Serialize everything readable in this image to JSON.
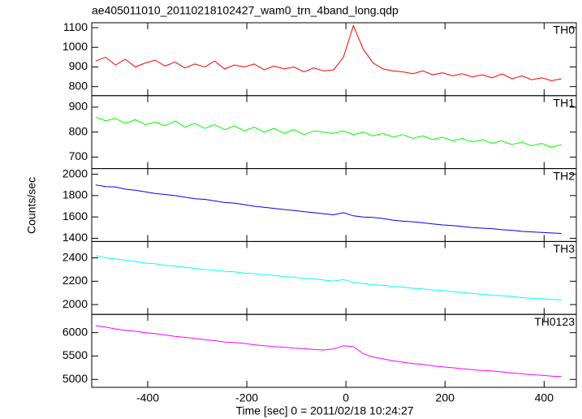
{
  "chart_data": {
    "type": "line",
    "title": "ae405011010_20110218102427_wam0_trn_4band_long.qdp",
    "xlabel": "Time [sec] 0 = 2011/02/18 10:24:27",
    "ylabel": "Counts/sec",
    "xlim": [
      -513,
      465
    ],
    "xticks": [
      -400,
      -200,
      0,
      200,
      400
    ],
    "x": [
      -505,
      -485,
      -465,
      -445,
      -425,
      -405,
      -385,
      -365,
      -345,
      -325,
      -305,
      -285,
      -265,
      -245,
      -225,
      -205,
      -185,
      -165,
      -145,
      -125,
      -105,
      -85,
      -65,
      -45,
      -25,
      -5,
      15,
      35,
      55,
      75,
      95,
      115,
      135,
      155,
      175,
      195,
      215,
      235,
      255,
      275,
      295,
      315,
      335,
      355,
      375,
      395,
      415,
      435
    ],
    "panels": [
      {
        "name": "TH0",
        "color": "#ff0000",
        "ylim": [
          754,
          1125
        ],
        "yticks": [
          800,
          900,
          1000,
          1100
        ],
        "values": [
          930,
          950,
          910,
          940,
          900,
          920,
          935,
          905,
          925,
          895,
          915,
          900,
          930,
          890,
          910,
          900,
          915,
          885,
          905,
          890,
          900,
          875,
          895,
          880,
          885,
          950,
          1110,
          990,
          920,
          890,
          880,
          875,
          865,
          880,
          860,
          870,
          855,
          865,
          850,
          860,
          845,
          865,
          840,
          855,
          835,
          845,
          830,
          840
        ]
      },
      {
        "name": "TH1",
        "color": "#00ff00",
        "ylim": [
          654,
          946
        ],
        "yticks": [
          700,
          800,
          900
        ],
        "values": [
          860,
          845,
          855,
          835,
          850,
          830,
          840,
          825,
          845,
          820,
          835,
          815,
          830,
          810,
          825,
          805,
          820,
          800,
          815,
          795,
          810,
          790,
          805,
          800,
          795,
          805,
          790,
          800,
          785,
          795,
          780,
          790,
          775,
          785,
          770,
          780,
          765,
          775,
          760,
          770,
          755,
          765,
          750,
          760,
          745,
          755,
          740,
          750
        ]
      },
      {
        "name": "TH2",
        "color": "#0000ff",
        "ylim": [
          1370,
          2053
        ],
        "yticks": [
          1400,
          1600,
          1800,
          2000
        ],
        "values": [
          1900,
          1885,
          1880,
          1860,
          1850,
          1835,
          1820,
          1810,
          1800,
          1785,
          1770,
          1765,
          1750,
          1735,
          1730,
          1715,
          1700,
          1690,
          1680,
          1670,
          1660,
          1650,
          1640,
          1630,
          1620,
          1640,
          1610,
          1600,
          1595,
          1585,
          1570,
          1560,
          1555,
          1545,
          1535,
          1525,
          1520,
          1510,
          1500,
          1495,
          1490,
          1480,
          1475,
          1465,
          1460,
          1455,
          1450,
          1445
        ]
      },
      {
        "name": "TH3",
        "color": "#00ffff",
        "ylim": [
          1916,
          2540
        ],
        "yticks": [
          2000,
          2200,
          2400
        ],
        "values": [
          2420,
          2400,
          2390,
          2380,
          2370,
          2355,
          2350,
          2335,
          2330,
          2320,
          2310,
          2300,
          2295,
          2285,
          2280,
          2270,
          2265,
          2255,
          2250,
          2240,
          2235,
          2225,
          2220,
          2210,
          2200,
          2215,
          2190,
          2180,
          2170,
          2165,
          2155,
          2150,
          2140,
          2135,
          2125,
          2120,
          2110,
          2105,
          2095,
          2090,
          2080,
          2075,
          2070,
          2060,
          2055,
          2050,
          2045,
          2040
        ]
      },
      {
        "name": "TH0123",
        "color": "#ff00ff",
        "ylim": [
          4831,
          6390
        ],
        "yticks": [
          5000,
          5500,
          6000
        ],
        "values": [
          6150,
          6120,
          6080,
          6050,
          6030,
          6000,
          5980,
          5950,
          5920,
          5900,
          5880,
          5850,
          5830,
          5800,
          5790,
          5770,
          5740,
          5720,
          5700,
          5690,
          5670,
          5660,
          5640,
          5630,
          5650,
          5720,
          5700,
          5550,
          5480,
          5440,
          5400,
          5370,
          5340,
          5320,
          5290,
          5270,
          5250,
          5230,
          5210,
          5190,
          5180,
          5160,
          5140,
          5120,
          5100,
          5090,
          5070,
          5060
        ]
      }
    ]
  }
}
